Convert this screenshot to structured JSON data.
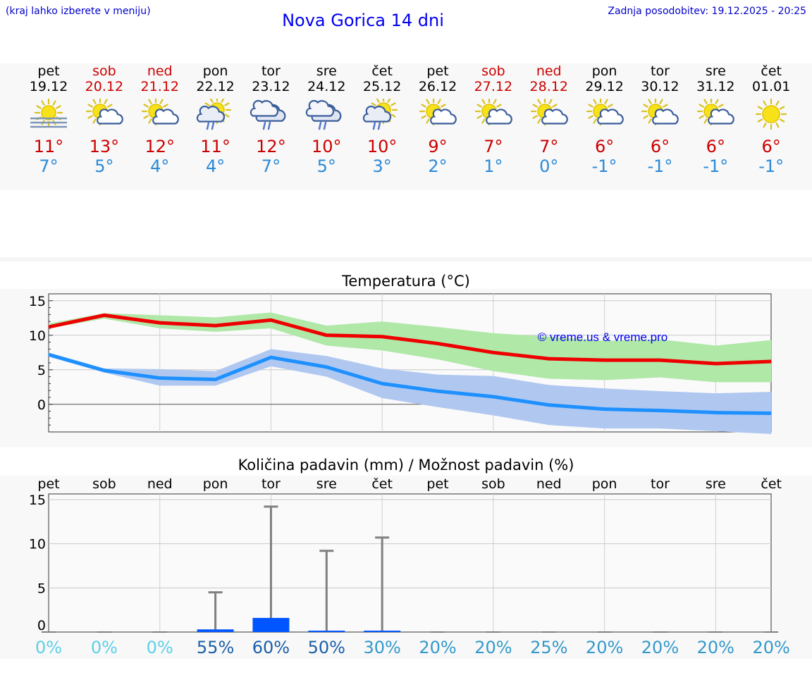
{
  "header": {
    "note": "(kraj lahko izberete v meniju)",
    "title": "Nova Gorica 14 dni",
    "update": "Zadnja posodobitev: 19.12.2025 - 20:25"
  },
  "days": [
    {
      "name": "pet",
      "date": "19.12",
      "max": "11°",
      "min": "7°",
      "weekend": false,
      "icon": "fog-sun-icon"
    },
    {
      "name": "sob",
      "date": "20.12",
      "max": "13°",
      "min": "5°",
      "weekend": true,
      "icon": "sun-cloud-icon"
    },
    {
      "name": "ned",
      "date": "21.12",
      "max": "12°",
      "min": "4°",
      "weekend": true,
      "icon": "sun-cloud-icon"
    },
    {
      "name": "pon",
      "date": "22.12",
      "max": "11°",
      "min": "4°",
      "weekend": false,
      "icon": "sun-cloud-rain-icon"
    },
    {
      "name": "tor",
      "date": "23.12",
      "max": "12°",
      "min": "7°",
      "weekend": false,
      "icon": "cloud-rain-icon"
    },
    {
      "name": "sre",
      "date": "24.12",
      "max": "10°",
      "min": "5°",
      "weekend": false,
      "icon": "cloud-rain-icon"
    },
    {
      "name": "čet",
      "date": "25.12",
      "max": "10°",
      "min": "3°",
      "weekend": false,
      "icon": "sun-cloud-rain-icon"
    },
    {
      "name": "pet",
      "date": "26.12",
      "max": "9°",
      "min": "2°",
      "weekend": false,
      "icon": "sun-cloud-icon"
    },
    {
      "name": "sob",
      "date": "27.12",
      "max": "7°",
      "min": "1°",
      "weekend": true,
      "icon": "sun-cloud-icon"
    },
    {
      "name": "ned",
      "date": "28.12",
      "max": "7°",
      "min": "0°",
      "weekend": true,
      "icon": "sun-cloud-icon"
    },
    {
      "name": "pon",
      "date": "29.12",
      "max": "6°",
      "min": "-1°",
      "weekend": false,
      "icon": "sun-cloud-icon"
    },
    {
      "name": "tor",
      "date": "30.12",
      "max": "6°",
      "min": "-1°",
      "weekend": false,
      "icon": "sun-cloud-icon"
    },
    {
      "name": "sre",
      "date": "31.12",
      "max": "6°",
      "min": "-1°",
      "weekend": false,
      "icon": "sun-cloud-icon"
    },
    {
      "name": "čet",
      "date": "01.01",
      "max": "6°",
      "min": "-1°",
      "weekend": false,
      "icon": "sun-icon"
    }
  ],
  "colors": {
    "max_line": "#ee0000",
    "min_line": "#1e90ff",
    "max_band": "#b0e8a8",
    "min_band": "#b0c8f0",
    "bar": "#0055ff",
    "whisker": "#808080",
    "pct_low": "#5bd0e8",
    "pct_mid": "#3399cc",
    "pct_high": "#1a5fa8"
  },
  "chart_data": [
    {
      "type": "line",
      "title": "Temperatura (°C)",
      "watermark": "© vreme.us & vreme.pro",
      "ylim": [
        -4,
        16
      ],
      "yticks": [
        0,
        5,
        10,
        15
      ],
      "series": [
        {
          "name": "max",
          "values": [
            11.2,
            12.9,
            11.8,
            11.4,
            12.2,
            10.0,
            9.8,
            8.8,
            7.5,
            6.6,
            6.4,
            6.4,
            5.9,
            6.2
          ],
          "band_low": [
            11,
            12.4,
            11,
            10.5,
            11,
            8.5,
            7.8,
            6.5,
            4.8,
            3.7,
            3.5,
            3.9,
            3.2,
            3.2
          ],
          "band_high": [
            11.7,
            13.2,
            12.9,
            12.6,
            13.3,
            11.4,
            12,
            11.2,
            10.3,
            9.8,
            9.2,
            9.4,
            8.5,
            9.3
          ]
        },
        {
          "name": "min",
          "values": [
            7.2,
            4.9,
            3.8,
            3.6,
            6.8,
            5.4,
            3.0,
            1.9,
            1.1,
            -0.1,
            -0.7,
            -0.9,
            -1.2,
            -1.3
          ],
          "band_low": [
            6.9,
            4.6,
            2.7,
            2.7,
            5.5,
            4.0,
            0.9,
            -0.4,
            -1.6,
            -3.0,
            -3.5,
            -3.5,
            -3.9,
            -4.3
          ],
          "band_high": [
            7.5,
            5.2,
            5.1,
            4.8,
            8.0,
            7.0,
            5.2,
            4.3,
            4.1,
            2.8,
            2.3,
            1.9,
            1.6,
            1.8
          ]
        }
      ]
    },
    {
      "type": "bar",
      "title": "Količina padavin (mm) / Možnost padavin (%)",
      "categories": [
        "pet",
        "sob",
        "ned",
        "pon",
        "tor",
        "sre",
        "čet",
        "pet",
        "sob",
        "ned",
        "pon",
        "tor",
        "sre",
        "čet"
      ],
      "ylim": [
        0,
        15
      ],
      "yticks": [
        0,
        5,
        10,
        15
      ],
      "values": [
        0,
        0,
        0,
        0.3,
        1.6,
        0.1,
        0.1,
        0,
        0,
        0,
        0,
        0,
        0,
        0
      ],
      "max_values": [
        0,
        0,
        0,
        4.5,
        14.2,
        9.2,
        10.7,
        0,
        0,
        0,
        0,
        0,
        0,
        0
      ],
      "probability": [
        "0%",
        "0%",
        "0%",
        "55%",
        "60%",
        "50%",
        "30%",
        "20%",
        "20%",
        "25%",
        "20%",
        "20%",
        "20%",
        "20%"
      ]
    }
  ]
}
